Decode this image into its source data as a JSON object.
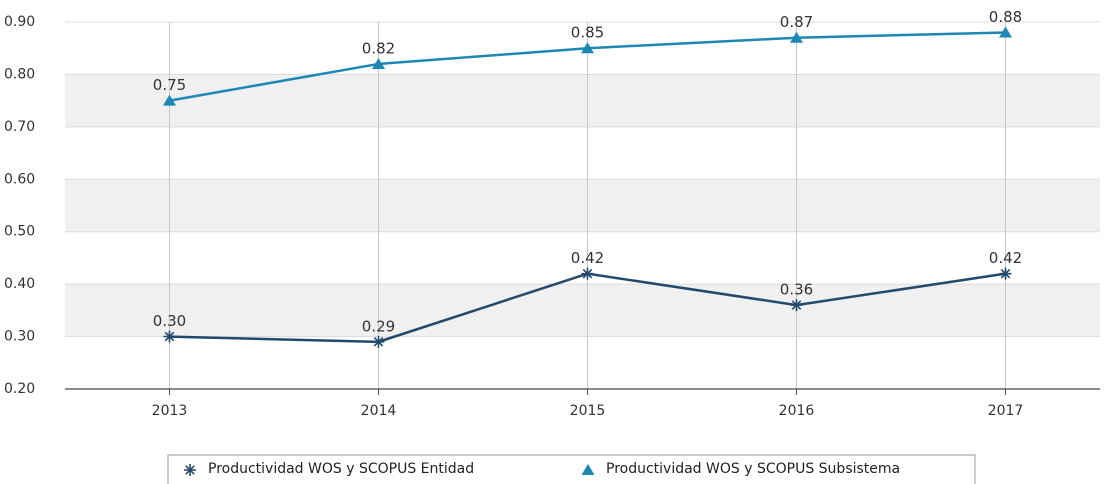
{
  "chart_data": {
    "type": "line",
    "categories": [
      "2013",
      "2014",
      "2015",
      "2016",
      "2017"
    ],
    "series": [
      {
        "name": "Productividad WOS y SCOPUS Entidad",
        "color": "#234a6b",
        "marker": "star",
        "values": [
          0.3,
          0.29,
          0.42,
          0.36,
          0.42
        ],
        "value_labels": [
          "0.30",
          "0.29",
          "0.42",
          "0.36",
          "0.42"
        ]
      },
      {
        "name": "Productividad WOS y SCOPUS Subsistema",
        "color": "#1e88b4",
        "marker": "triangle",
        "values": [
          0.75,
          0.82,
          0.85,
          0.87,
          0.88
        ],
        "value_labels": [
          "0.75",
          "0.82",
          "0.85",
          "0.87",
          "0.88"
        ]
      }
    ],
    "ylim": [
      0.2,
      0.9
    ],
    "yticks": [
      {
        "value": 0.2,
        "label": "0.20"
      },
      {
        "value": 0.3,
        "label": "0.30"
      },
      {
        "value": 0.4,
        "label": "0.40"
      },
      {
        "value": 0.5,
        "label": "0.50"
      },
      {
        "value": 0.6,
        "label": "0.60"
      },
      {
        "value": 0.7,
        "label": "0.70"
      },
      {
        "value": 0.8,
        "label": "0.80"
      },
      {
        "value": 0.9,
        "label": "0.90"
      }
    ],
    "grid": true,
    "legend": "bottom"
  }
}
